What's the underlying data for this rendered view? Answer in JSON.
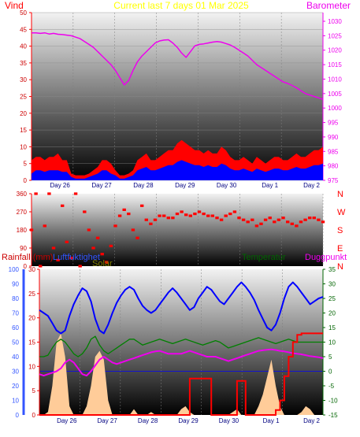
{
  "header": {
    "left_label": "Vind",
    "title": "Current last 7 days 01 Mar 2025",
    "right_label": "Barometer"
  },
  "panel2": {
    "dir_labels": [
      "N",
      "W",
      "S",
      "E",
      "N"
    ]
  },
  "panel3": {
    "labels": [
      "Rainfall (mm)",
      "Luftfuktighet",
      "Solar",
      "Temperatur",
      "Duggpunkt"
    ]
  },
  "colors": {
    "wind_gust": "#ff0000",
    "wind_avg": "#0000ff",
    "barometer": "#ee00ee",
    "direction": "#ff0000",
    "humidity": "#0000ff",
    "temperature": "#008000",
    "dewpoint": "#ee00ee",
    "solar": "#ffcc99",
    "rain": "#ff0000",
    "title": "#ffff00",
    "vind_label": "#ff0000",
    "humidity_axis": "#3355ff",
    "axis_text": "#cc0000",
    "temp_axis": "#006400"
  },
  "chart_data": [
    {
      "id": "wind_barometer",
      "type": "line",
      "title": "Current last 7 days 01 Mar 2025",
      "x_ticks": [
        "Day 26",
        "Day 27",
        "Day 28",
        "Day 29",
        "Day 30",
        "Day 1",
        "Day 2"
      ],
      "ylim_left": [
        0,
        50
      ],
      "yticks_left": [
        0,
        5,
        10,
        15,
        20,
        25,
        30,
        35,
        40,
        45,
        50
      ],
      "ylim_right": [
        975,
        1033
      ],
      "yticks_right": [
        975,
        980,
        985,
        990,
        995,
        1000,
        1005,
        1010,
        1015,
        1020,
        1025,
        1030
      ],
      "series": [
        {
          "name": "Vind",
          "axis": "left",
          "role": "gust",
          "values": [
            6,
            7,
            7,
            6,
            7,
            7,
            8,
            6,
            6,
            2,
            1.5,
            1.5,
            1.5,
            2,
            3,
            4,
            6,
            6,
            5,
            3,
            1.5,
            1.5,
            2,
            3,
            6,
            7,
            8,
            6,
            6,
            7,
            8,
            9,
            9,
            11,
            12,
            11,
            10,
            9,
            9,
            8,
            9,
            8,
            8,
            10,
            9,
            7,
            6,
            6,
            7,
            6,
            5,
            7,
            6,
            5,
            6,
            7,
            7,
            6,
            6,
            7,
            8,
            7,
            7,
            8,
            9,
            9,
            10
          ]
        },
        {
          "name": "",
          "axis": "left",
          "role": "average",
          "values": [
            2,
            3,
            3,
            2.5,
            3,
            3,
            3,
            2.5,
            2.5,
            1,
            0.5,
            0.5,
            0.5,
            1,
            1.5,
            2,
            3,
            3,
            2,
            1.5,
            0.5,
            0.5,
            1,
            1.5,
            3,
            3.5,
            4,
            3,
            3,
            3.5,
            4,
            4.5,
            4.5,
            5.5,
            6,
            5.5,
            5,
            4.5,
            4.5,
            4,
            4.5,
            4,
            4,
            5,
            4.5,
            3.5,
            3,
            3,
            3.5,
            3,
            2.5,
            3.5,
            3,
            2.5,
            3,
            3.5,
            3.5,
            3,
            3,
            3.5,
            4,
            3.5,
            3.5,
            4,
            4.5,
            4.5,
            5
          ]
        },
        {
          "name": "Barometer",
          "axis": "right",
          "values": [
            1026,
            1026,
            1025.8,
            1026,
            1025.6,
            1025.8,
            1025.5,
            1025.4,
            1025.2,
            1025,
            1024.5,
            1024,
            1023,
            1022,
            1021,
            1019.5,
            1018,
            1016.5,
            1015,
            1013,
            1010.5,
            1008,
            1009.5,
            1013,
            1016,
            1018,
            1019.5,
            1021,
            1022.5,
            1023.2,
            1023.5,
            1023.6,
            1022.5,
            1021,
            1019,
            1017.5,
            1019.5,
            1021.5,
            1022,
            1022.2,
            1022.5,
            1022.8,
            1023,
            1022.8,
            1022.3,
            1021.8,
            1021,
            1020,
            1019,
            1018,
            1016.5,
            1015,
            1014,
            1013,
            1012,
            1011,
            1010,
            1009,
            1008.5,
            1007.8,
            1007,
            1006,
            1005,
            1004.5,
            1004,
            1003.5,
            1003
          ]
        }
      ]
    },
    {
      "id": "wind_direction",
      "type": "scatter",
      "ylim": [
        0,
        360
      ],
      "yticks": [
        0,
        90,
        180,
        270,
        360
      ],
      "x_ticks": [],
      "series": [
        {
          "name": "",
          "values": [
            180,
            360,
            0,
            200,
            360,
            90,
            30,
            300,
            120,
            40,
            360,
            0,
            270,
            180,
            90,
            140,
            60,
            20,
            100,
            200,
            250,
            280,
            260,
            180,
            140,
            300,
            230,
            210,
            230,
            250,
            250,
            240,
            240,
            260,
            270,
            255,
            250,
            260,
            270,
            260,
            250,
            250,
            240,
            230,
            250,
            260,
            270,
            240,
            230,
            220,
            230,
            200,
            210,
            230,
            240,
            220,
            230,
            240,
            220,
            210,
            200,
            220,
            230,
            240,
            240,
            230,
            220
          ]
        }
      ]
    },
    {
      "id": "rain_humidity_temp",
      "type": "line",
      "x_ticks": [
        "Day 26",
        "Day 27",
        "Day 28",
        "Day 29",
        "Day 30",
        "Day 1",
        "Day 2"
      ],
      "ylim_rain": [
        0,
        30
      ],
      "yticks_rain": [
        0,
        5,
        10,
        15,
        20,
        25,
        30
      ],
      "ylim_humidity": [
        0,
        100
      ],
      "yticks_humidity": [
        0,
        10,
        20,
        30,
        40,
        50,
        60,
        70,
        80,
        90,
        100
      ],
      "ylim_temp": [
        -15,
        35
      ],
      "yticks_temp": [
        -15,
        -10,
        -5,
        0,
        5,
        10,
        15,
        20,
        25,
        30,
        35
      ],
      "series": [
        {
          "name": "Luftfuktighet",
          "axis": "humidity",
          "values": [
            72,
            70,
            68,
            63,
            58,
            56,
            58,
            68,
            76,
            82,
            87,
            85,
            78,
            66,
            58,
            56,
            62,
            70,
            77,
            82,
            86,
            88,
            86,
            80,
            75,
            72,
            70,
            72,
            76,
            80,
            84,
            87,
            84,
            80,
            76,
            72,
            74,
            80,
            84,
            88,
            86,
            82,
            78,
            76,
            80,
            84,
            88,
            91,
            88,
            84,
            79,
            72,
            66,
            60,
            58,
            62,
            70,
            80,
            88,
            91,
            88,
            84,
            80,
            76,
            78,
            80,
            81
          ]
        },
        {
          "name": "Temperatur",
          "axis": "temp",
          "values": [
            5,
            5,
            5.5,
            8,
            10,
            11,
            10,
            8,
            6,
            5,
            6,
            8,
            11,
            12,
            9,
            7,
            6,
            7,
            8,
            9,
            10,
            11,
            11,
            10,
            9,
            9.5,
            10,
            10.5,
            11,
            10.5,
            10,
            9.5,
            10,
            10.5,
            11,
            10.5,
            10,
            9.5,
            9,
            9.5,
            10,
            10.5,
            10,
            9,
            8,
            8.5,
            9,
            9.5,
            10,
            10.5,
            11,
            11.5,
            11,
            10.5,
            10,
            9.5,
            10,
            10.5,
            11,
            10.5,
            10,
            10,
            10,
            10,
            10,
            10,
            10
          ]
        },
        {
          "name": "Duggpunkt",
          "axis": "temp",
          "values": [
            -1,
            -1.5,
            -1,
            -0.5,
            0,
            1,
            3,
            4,
            3,
            1,
            -1,
            -1.5,
            0,
            2,
            4,
            5,
            4,
            3,
            2.5,
            3,
            3.5,
            4,
            4.5,
            5,
            5.5,
            6,
            6.5,
            6.8,
            7,
            6.5,
            6,
            6,
            6,
            6,
            6.5,
            7,
            6.5,
            6,
            5.5,
            5,
            5,
            5,
            4.5,
            4,
            3.5,
            4,
            4.5,
            5,
            5.5,
            6,
            6.5,
            7,
            7.2,
            7.4,
            7.5,
            7.3,
            7,
            6.8,
            6.5,
            6.2,
            6,
            5.8,
            5.5,
            5.2,
            5,
            4.8,
            4.5
          ]
        },
        {
          "name": "Solar",
          "axis": "temp",
          "role": "area",
          "values": [
            -15,
            -15,
            -14,
            -5,
            10,
            13,
            5,
            -12,
            -15,
            -15,
            -15,
            -12,
            -5,
            5,
            7,
            4,
            -10,
            -15,
            -15,
            -15,
            -15,
            -15,
            -13,
            -15,
            -15,
            -15,
            -14,
            -15,
            -15,
            -15,
            -15,
            -15,
            -15,
            -13,
            -12,
            -14,
            -15,
            -15,
            -15,
            -15,
            -15,
            -15,
            -15,
            -15,
            -15,
            -14,
            -13,
            -15,
            -15,
            -15,
            -15,
            -12,
            -8,
            -2,
            4,
            -5,
            -12,
            -15,
            -15,
            -15,
            -15,
            -14,
            -12,
            -13,
            -15,
            -15,
            -15
          ]
        },
        {
          "name": "Rainfall (mm)",
          "axis": "rain",
          "role": "step",
          "values": [
            0,
            0,
            0,
            0,
            0,
            0,
            0,
            0,
            0,
            0,
            0,
            0,
            0,
            0,
            0,
            0,
            0,
            0,
            0,
            0,
            0,
            0,
            0,
            0,
            0,
            0,
            0,
            0,
            0,
            0,
            0,
            0,
            0,
            0,
            0,
            7.5,
            7.5,
            7.5,
            7.5,
            7.5,
            0,
            0,
            0,
            0,
            0,
            0,
            7,
            7,
            0,
            0,
            0,
            0,
            0,
            0,
            0,
            1,
            3,
            8,
            12,
            15,
            16.5,
            16.8,
            16.8,
            16.8,
            16.8,
            16.8,
            16.8
          ]
        }
      ]
    }
  ]
}
